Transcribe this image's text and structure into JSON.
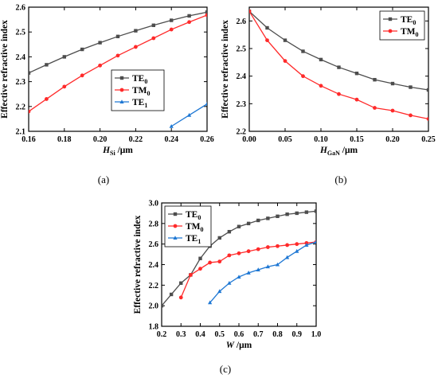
{
  "colors": {
    "TE0": "#4d4d4d",
    "TM0": "#ff2a2a",
    "TE1": "#1f78d4"
  },
  "chart_data": [
    {
      "type": "line",
      "panel_label": "(a)",
      "xlabel_main": "H",
      "xlabel_sub": "Si",
      "xlabel_unit": " /μm",
      "ylabel": "Effective refractive index",
      "xlim": [
        0.16,
        0.26
      ],
      "ylim": [
        2.1,
        2.6
      ],
      "xticks": [
        "0.16",
        "0.18",
        "0.20",
        "0.22",
        "0.24",
        "0.26"
      ],
      "yticks": [
        "2.1",
        "2.2",
        "2.3",
        "2.4",
        "2.5",
        "2.6"
      ],
      "series": [
        {
          "name": "TE",
          "name_sub": "0",
          "marker": "square",
          "x": [
            0.16,
            0.17,
            0.18,
            0.19,
            0.2,
            0.21,
            0.22,
            0.23,
            0.24,
            0.25,
            0.26
          ],
          "y": [
            2.335,
            2.368,
            2.4,
            2.43,
            2.457,
            2.482,
            2.505,
            2.527,
            2.547,
            2.565,
            2.58
          ]
        },
        {
          "name": "TM",
          "name_sub": "0",
          "marker": "circle",
          "x": [
            0.16,
            0.17,
            0.18,
            0.19,
            0.2,
            0.21,
            0.22,
            0.23,
            0.24,
            0.25,
            0.26
          ],
          "y": [
            2.18,
            2.23,
            2.28,
            2.325,
            2.365,
            2.405,
            2.44,
            2.475,
            2.51,
            2.54,
            2.568
          ]
        },
        {
          "name": "TE",
          "name_sub": "1",
          "marker": "triangle",
          "x": [
            0.24,
            0.25,
            0.26
          ],
          "y": [
            2.12,
            2.165,
            2.21
          ]
        }
      ]
    },
    {
      "type": "line",
      "panel_label": "(b)",
      "xlabel_main": "H",
      "xlabel_sub": "GaN",
      "xlabel_unit": " /μm",
      "ylabel": "Effective refractive index",
      "xlim": [
        0.0,
        0.25
      ],
      "ylim": [
        2.2,
        2.65
      ],
      "xticks": [
        "0.00",
        "0.05",
        "0.10",
        "0.15",
        "0.20",
        "0.25"
      ],
      "yticks": [
        "2.2",
        "2.3",
        "2.4",
        "2.5",
        "2.6"
      ],
      "series": [
        {
          "name": "TE",
          "name_sub": "0",
          "marker": "square",
          "x": [
            0.0,
            0.025,
            0.05,
            0.075,
            0.1,
            0.125,
            0.15,
            0.175,
            0.2,
            0.225,
            0.25
          ],
          "y": [
            2.635,
            2.575,
            2.53,
            2.49,
            2.46,
            2.432,
            2.41,
            2.387,
            2.373,
            2.36,
            2.35
          ]
        },
        {
          "name": "TM",
          "name_sub": "0",
          "marker": "circle",
          "x": [
            0.0,
            0.025,
            0.05,
            0.075,
            0.1,
            0.125,
            0.15,
            0.175,
            0.2,
            0.225,
            0.25
          ],
          "y": [
            2.635,
            2.53,
            2.455,
            2.4,
            2.365,
            2.335,
            2.315,
            2.285,
            2.275,
            2.258,
            2.245
          ]
        }
      ]
    },
    {
      "type": "line",
      "panel_label": "(c)",
      "xlabel_main": "W",
      "xlabel_sub": "",
      "xlabel_unit": " /μm",
      "ylabel": "Effective refractive index",
      "xlim": [
        0.2,
        1.0
      ],
      "ylim": [
        1.8,
        3.0
      ],
      "xticks": [
        "0.2",
        "0.3",
        "0.4",
        "0.5",
        "0.6",
        "0.7",
        "0.8",
        "0.9",
        "1.0"
      ],
      "yticks": [
        "1.8",
        "2.0",
        "2.2",
        "2.4",
        "2.6",
        "2.8",
        "3.0"
      ],
      "series": [
        {
          "name": "TE",
          "name_sub": "0",
          "marker": "square",
          "x": [
            0.2,
            0.25,
            0.3,
            0.35,
            0.4,
            0.45,
            0.5,
            0.55,
            0.6,
            0.65,
            0.7,
            0.75,
            0.8,
            0.85,
            0.9,
            0.95,
            1.0
          ],
          "y": [
            2.0,
            2.11,
            2.22,
            2.3,
            2.46,
            2.58,
            2.66,
            2.72,
            2.77,
            2.8,
            2.83,
            2.85,
            2.87,
            2.89,
            2.9,
            2.91,
            2.92
          ]
        },
        {
          "name": "TM",
          "name_sub": "0",
          "marker": "circle",
          "x": [
            0.3,
            0.35,
            0.4,
            0.45,
            0.5,
            0.55,
            0.6,
            0.65,
            0.7,
            0.75,
            0.8,
            0.85,
            0.9,
            0.95,
            1.0
          ],
          "y": [
            2.08,
            2.3,
            2.36,
            2.42,
            2.43,
            2.49,
            2.51,
            2.53,
            2.55,
            2.57,
            2.58,
            2.59,
            2.6,
            2.61,
            2.62
          ]
        },
        {
          "name": "TE",
          "name_sub": "1",
          "marker": "triangle",
          "x": [
            0.45,
            0.5,
            0.55,
            0.6,
            0.65,
            0.7,
            0.75,
            0.8,
            0.85,
            0.9,
            0.95,
            1.0
          ],
          "y": [
            2.03,
            2.14,
            2.22,
            2.28,
            2.32,
            2.35,
            2.38,
            2.4,
            2.47,
            2.53,
            2.59,
            2.62
          ]
        }
      ]
    }
  ]
}
